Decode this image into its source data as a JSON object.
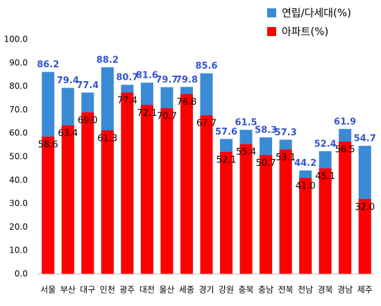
{
  "chart_data": {
    "type": "bar",
    "categories": [
      "서울",
      "부산",
      "대구",
      "인천",
      "광주",
      "대전",
      "울산",
      "세종",
      "경기",
      "강원",
      "충북",
      "충남",
      "전북",
      "전남",
      "경북",
      "경남",
      "제주"
    ],
    "series": [
      {
        "name": "연립/다세대(%)",
        "color": "#3a8ad6",
        "values": [
          86.2,
          79.4,
          77.4,
          88.2,
          80.7,
          81.6,
          79.7,
          79.8,
          85.6,
          57.6,
          61.5,
          58.3,
          57.3,
          44.2,
          52.4,
          61.9,
          54.7
        ]
      },
      {
        "name": "아파트(%)",
        "color": "#ff0000",
        "values": [
          58.6,
          63.4,
          69.0,
          61.3,
          77.4,
          72.1,
          70.7,
          76.8,
          67.7,
          52.1,
          55.4,
          50.7,
          53.1,
          41.0,
          45.1,
          56.5,
          32.0
        ],
        "value_labels": [
          "58.6",
          "63.4",
          "69.0",
          "61.3",
          "77.4",
          "72.1",
          "70.7",
          "76.8",
          "67.7",
          "52.1",
          "55.4",
          "50.7",
          "53.1",
          "41.0",
          "45.1",
          "56.5",
          "32.0"
        ]
      }
    ],
    "ylim": [
      0,
      100
    ],
    "yticks": [
      {
        "value": 0,
        "label": "0.0"
      },
      {
        "value": 10,
        "label": "10.0"
      },
      {
        "value": 20,
        "label": "20.0"
      },
      {
        "value": 30,
        "label": "30.0"
      },
      {
        "value": 40,
        "label": "40.0"
      },
      {
        "value": 50,
        "label": "50.0"
      },
      {
        "value": 60,
        "label": "60.0"
      },
      {
        "value": 70,
        "label": "70.0"
      },
      {
        "value": 80,
        "label": "80.0"
      },
      {
        "value": 90,
        "label": "90.0"
      },
      {
        "value": 100,
        "label": "100.0"
      }
    ],
    "grid": false,
    "legend": "top-right"
  }
}
